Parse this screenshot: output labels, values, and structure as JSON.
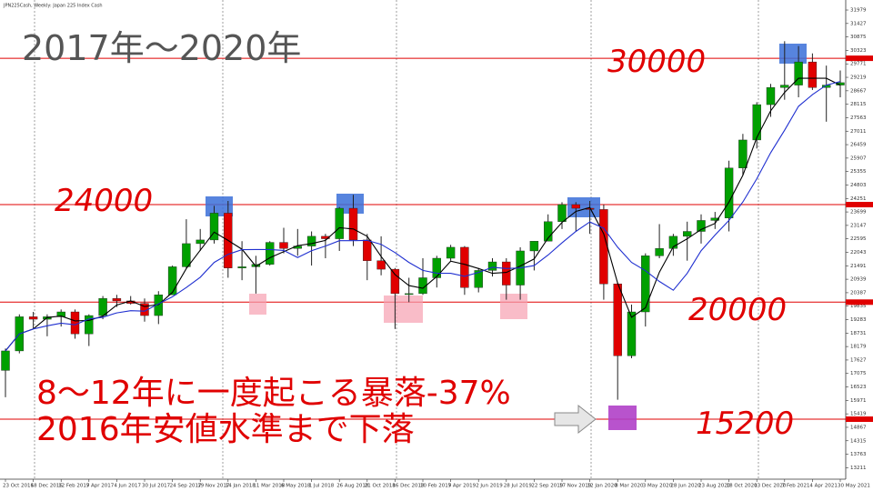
{
  "chart_data": {
    "type": "candlestick",
    "symbol_label": "JPN225Cash, Weekly: Japan 225 Index Cash",
    "title": "2017年～2020年",
    "annotations": [
      "8～12年に一度起こる暴落-37%",
      "2016年安値水準まで下落"
    ],
    "categories": [
      "23 Oct 2016",
      null,
      "18 Dec 2016",
      null,
      "12 Feb 2017",
      null,
      "9 Apr 2017",
      null,
      "4 Jun 2017",
      null,
      "30 Jul 2017",
      null,
      "24 Sep 2017",
      null,
      "19 Nov 2017",
      null,
      "14 Jan 2018",
      null,
      "11 Mar 2018",
      null,
      "6 May 2018",
      null,
      "1 Jul 2018",
      null,
      "26 Aug 2018",
      null,
      "21 Oct 2018",
      null,
      "16 Dec 2018",
      null,
      "10 Feb 2019",
      null,
      "7 Apr 2019",
      null,
      "2 Jun 2019",
      null,
      "28 Jul 2019",
      null,
      "22 Sep 2019",
      null,
      "17 Nov 2019",
      null,
      "12 Jan 2020",
      null,
      "8 Mar 2020",
      null,
      "3 May 2020",
      null,
      "28 Jun 2020",
      null,
      "23 Aug 2020",
      null,
      "18 Oct 2020",
      null,
      "13 Dec 2020",
      null,
      "7 Feb 2021",
      null,
      "4 Apr 2021",
      null,
      "30 May 2021"
    ],
    "open": [
      17200,
      18000,
      19400,
      19300,
      19400,
      19600,
      18700,
      19450,
      20150,
      20050,
      19950,
      19450,
      20300,
      21450,
      22400,
      22550,
      23650,
      21400,
      21450,
      21550,
      22450,
      22200,
      22300,
      22700,
      22600,
      23850,
      22550,
      21700,
      21350,
      20350,
      20350,
      21000,
      21800,
      22250,
      20600,
      21300,
      21650,
      20700,
      22100,
      22500,
      23300,
      24000,
      23850,
      23800,
      20750,
      17800,
      19600,
      21900,
      22200,
      22700,
      22900,
      23350,
      23450,
      25500,
      26650,
      28100,
      28800,
      28900,
      29850,
      28800,
      28900
    ],
    "high": [
      18100,
      19500,
      19600,
      19500,
      19700,
      19700,
      19500,
      20250,
      20300,
      20250,
      20150,
      20450,
      21500,
      23400,
      23000,
      23950,
      24150,
      22500,
      21900,
      22500,
      23050,
      23000,
      22900,
      22800,
      23900,
      24400,
      22800,
      22700,
      21400,
      21000,
      21800,
      21900,
      22350,
      22300,
      21400,
      21800,
      21800,
      22250,
      22500,
      23600,
      24100,
      24100,
      24150,
      24000,
      20800,
      19900,
      22000,
      23200,
      22800,
      23300,
      23600,
      23700,
      25800,
      26900,
      28200,
      28950,
      30700,
      30500,
      30200,
      29700,
      29500
    ],
    "low": [
      16100,
      17900,
      18900,
      18600,
      19000,
      18500,
      18200,
      19300,
      19800,
      19900,
      19200,
      19100,
      20300,
      21400,
      22100,
      22400,
      21000,
      20900,
      20350,
      21500,
      22000,
      21900,
      21500,
      21800,
      22100,
      22300,
      20900,
      21100,
      18900,
      20000,
      20300,
      20600,
      21700,
      20300,
      20400,
      21050,
      20100,
      20100,
      21300,
      22500,
      23000,
      22900,
      22800,
      20100,
      16000,
      17700,
      19000,
      21800,
      21900,
      21700,
      22400,
      23000,
      22900,
      25200,
      26300,
      27600,
      28300,
      28400,
      28700,
      27400,
      28400
    ],
    "close": [
      18000,
      19400,
      19300,
      19400,
      19600,
      18700,
      19450,
      20150,
      20050,
      19950,
      19450,
      20300,
      21450,
      22400,
      22550,
      23650,
      21400,
      21450,
      21550,
      22450,
      22200,
      22300,
      22700,
      22600,
      23850,
      22550,
      21700,
      21350,
      20350,
      20350,
      21000,
      21800,
      22250,
      20600,
      21300,
      21650,
      20700,
      22100,
      22500,
      23300,
      24000,
      23850,
      23800,
      20750,
      17800,
      19600,
      21900,
      22200,
      22700,
      22900,
      23350,
      23450,
      25500,
      26650,
      28100,
      28800,
      28900,
      29850,
      28800,
      28900,
      29000
    ],
    "up_color": "#00a000",
    "down_color": "#e00000",
    "wick_color": "#222222",
    "ma_lines": [
      {
        "color": "#000000",
        "values": [
          18000,
          18700,
          18900,
          19370,
          19430,
          19230,
          19250,
          19430,
          19880,
          20050,
          19820,
          19900,
          20400,
          21380,
          22130,
          22870,
          22530,
          22170,
          21470,
          21820,
          22070,
          22320,
          22400,
          22530,
          23050,
          23000,
          22700,
          21870,
          21130,
          20680,
          20570,
          21050,
          21680,
          21550,
          21380,
          21180,
          21220,
          21480,
          21770,
          22630,
          23270,
          23720,
          23880,
          22800,
          20780,
          19380,
          19770,
          21230,
          22270,
          22600,
          22980,
          23230,
          24100,
          25200,
          26750,
          27850,
          28600,
          29180,
          29180,
          29180,
          28900
        ]
      },
      {
        "color": "#1f2fd0",
        "values": [
          18000,
          18700,
          18900,
          19030,
          19140,
          19070,
          19310,
          19380,
          19560,
          19650,
          19630,
          19930,
          20220,
          20600,
          21020,
          21630,
          21960,
          22150,
          22160,
          22160,
          22120,
          21830,
          22110,
          22300,
          22520,
          22520,
          22530,
          22370,
          22030,
          21630,
          21300,
          21190,
          21180,
          21060,
          21220,
          21430,
          21380,
          21400,
          21500,
          21930,
          22430,
          22900,
          23290,
          23030,
          22250,
          21630,
          21290,
          20850,
          20490,
          21180,
          22110,
          22750,
          23350,
          24110,
          25060,
          26130,
          27050,
          28030,
          28510,
          28900,
          29050
        ]
      }
    ],
    "levels": [
      30000,
      24000,
      20000,
      15200
    ],
    "level_color": "#e00000",
    "ylim": [
      12740,
      32390
    ],
    "yticks": [
      13211,
      13763,
      14315,
      14867,
      15419,
      15971,
      16523,
      17075,
      17627,
      18179,
      18731,
      19283,
      19835,
      20387,
      20939,
      21491,
      22043,
      22595,
      23147,
      23699,
      24251,
      24803,
      25355,
      25907,
      26459,
      27011,
      27563,
      28115,
      28667,
      29219,
      29771,
      30323,
      30875,
      31427,
      31979
    ]
  }
}
